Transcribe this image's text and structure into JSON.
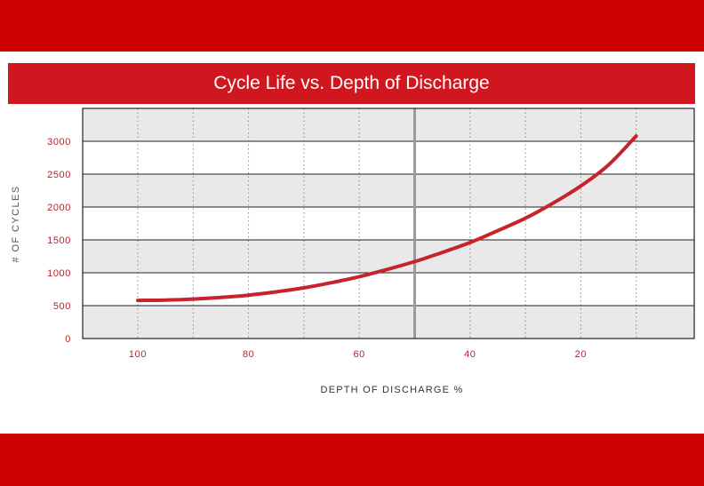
{
  "colors": {
    "band": "#cc0000",
    "title_bg": "#d0161e",
    "curve": "#c8232b",
    "tick": "#b8222b",
    "shade": "#e9e9ea",
    "divider": "#9a9a9a"
  },
  "chart_data": {
    "type": "line",
    "title": "Cycle Life vs. Depth of Discharge",
    "xlabel": "DEPTH OF DISCHARGE %",
    "ylabel": "# OF CYCLES",
    "x_reversed": true,
    "xlim": [
      110,
      0
    ],
    "ylim": [
      0,
      3000
    ],
    "x_ticks": [
      100,
      80,
      60,
      40,
      20
    ],
    "x_tick_labels": [
      "100",
      "80",
      "60",
      "40",
      "20"
    ],
    "x_minor_gridlines": [
      90,
      70,
      50,
      30,
      10
    ],
    "y_ticks": [
      0,
      500,
      1000,
      1500,
      2000,
      2500,
      3000
    ],
    "y_tick_labels": [
      "0",
      "500",
      "1000",
      "1500",
      "2000",
      "2500",
      "3000"
    ],
    "vertical_marker_x": 50,
    "grid": true,
    "series": [
      {
        "x": [
          100,
          95,
          90,
          85,
          80,
          75,
          70,
          65,
          60,
          55,
          50,
          45,
          40,
          35,
          30,
          25,
          20,
          15,
          10
        ],
        "values": [
          580,
          585,
          600,
          625,
          660,
          710,
          770,
          850,
          940,
          1050,
          1170,
          1310,
          1460,
          1640,
          1830,
          2060,
          2320,
          2640,
          3080
        ]
      }
    ]
  }
}
